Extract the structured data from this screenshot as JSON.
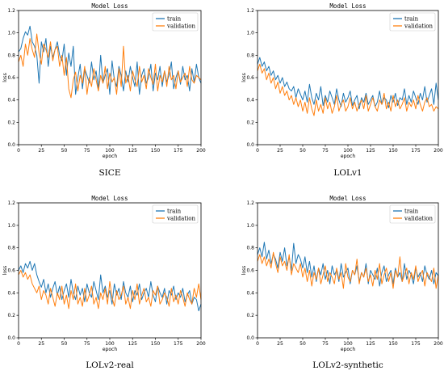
{
  "colors": {
    "train": "#1f77b4",
    "validation": "#ff7f0e"
  },
  "chart_data": [
    {
      "type": "line",
      "title": "Model Loss",
      "caption": "SICE",
      "xlabel": "epoch",
      "ylabel": "loss",
      "xlim": [
        0,
        200
      ],
      "ylim": [
        0,
        1.2
      ],
      "xticks": [
        "0",
        "25",
        "50",
        "75",
        "100",
        "125",
        "150",
        "175",
        "200"
      ],
      "yticks": [
        "0.0",
        "0.2",
        "0.4",
        "0.6",
        "0.8",
        "1.0",
        "1.2"
      ],
      "legend_position": "top-right",
      "series": [
        {
          "name": "train",
          "color": "#1f77b4",
          "values": [
            0.83,
            0.86,
            0.95,
            1.01,
            0.98,
            1.06,
            0.92,
            0.88,
            0.8,
            0.55,
            0.92,
            0.83,
            0.95,
            0.7,
            0.88,
            0.78,
            0.85,
            0.92,
            0.8,
            0.75,
            0.9,
            0.62,
            0.82,
            0.7,
            0.88,
            0.45,
            0.6,
            0.72,
            0.5,
            0.68,
            0.62,
            0.55,
            0.74,
            0.58,
            0.66,
            0.5,
            0.8,
            0.55,
            0.62,
            0.68,
            0.45,
            0.75,
            0.58,
            0.52,
            0.7,
            0.62,
            0.48,
            0.66,
            0.56,
            0.7,
            0.6,
            0.52,
            0.74,
            0.45,
            0.62,
            0.68,
            0.55,
            0.6,
            0.72,
            0.48,
            0.64,
            0.58,
            0.7,
            0.52,
            0.66,
            0.56,
            0.62,
            0.74,
            0.5,
            0.6,
            0.66,
            0.54,
            0.7,
            0.58,
            0.62,
            0.48,
            0.68,
            0.56,
            0.72,
            0.6,
            0.55
          ]
        },
        {
          "name": "validation",
          "color": "#ff7f0e",
          "values": [
            0.74,
            0.8,
            0.7,
            0.9,
            0.8,
            0.95,
            0.85,
            0.78,
            0.99,
            0.82,
            0.72,
            0.9,
            0.85,
            0.78,
            0.92,
            0.75,
            0.85,
            0.88,
            0.7,
            0.8,
            0.62,
            0.78,
            0.5,
            0.42,
            0.58,
            0.65,
            0.48,
            0.62,
            0.55,
            0.7,
            0.45,
            0.6,
            0.52,
            0.68,
            0.58,
            0.48,
            0.62,
            0.55,
            0.7,
            0.5,
            0.64,
            0.56,
            0.6,
            0.45,
            0.68,
            0.52,
            0.88,
            0.55,
            0.62,
            0.48,
            0.66,
            0.58,
            0.52,
            0.7,
            0.56,
            0.62,
            0.5,
            0.68,
            0.6,
            0.54,
            0.72,
            0.48,
            0.62,
            0.56,
            0.66,
            0.52,
            0.7,
            0.58,
            0.62,
            0.5,
            0.66,
            0.56,
            0.6,
            0.64,
            0.52,
            0.7,
            0.58,
            0.55,
            0.62,
            0.6,
            0.58
          ]
        }
      ]
    },
    {
      "type": "line",
      "title": "Model Loss",
      "caption": "LOLv1",
      "xlabel": "epoch",
      "ylabel": "loss",
      "xlim": [
        0,
        200
      ],
      "ylim": [
        0,
        1.2
      ],
      "xticks": [
        "0",
        "25",
        "50",
        "75",
        "100",
        "125",
        "150",
        "175",
        "200"
      ],
      "yticks": [
        "0.0",
        "0.2",
        "0.4",
        "0.6",
        "0.8",
        "1.0",
        "1.2"
      ],
      "legend_position": "top-right",
      "series": [
        {
          "name": "train",
          "color": "#1f77b4",
          "values": [
            0.72,
            0.78,
            0.7,
            0.74,
            0.66,
            0.7,
            0.62,
            0.66,
            0.58,
            0.62,
            0.55,
            0.6,
            0.52,
            0.56,
            0.5,
            0.48,
            0.52,
            0.42,
            0.5,
            0.45,
            0.4,
            0.48,
            0.38,
            0.54,
            0.42,
            0.36,
            0.46,
            0.4,
            0.52,
            0.35,
            0.44,
            0.38,
            0.48,
            0.42,
            0.36,
            0.5,
            0.4,
            0.34,
            0.46,
            0.38,
            0.42,
            0.48,
            0.35,
            0.4,
            0.44,
            0.32,
            0.42,
            0.38,
            0.46,
            0.36,
            0.4,
            0.44,
            0.34,
            0.38,
            0.48,
            0.36,
            0.42,
            0.4,
            0.33,
            0.44,
            0.38,
            0.46,
            0.35,
            0.42,
            0.4,
            0.5,
            0.36,
            0.44,
            0.38,
            0.48,
            0.42,
            0.36,
            0.46,
            0.4,
            0.52,
            0.38,
            0.44,
            0.5,
            0.36,
            0.55,
            0.4
          ]
        },
        {
          "name": "validation",
          "color": "#ff7f0e",
          "values": [
            0.66,
            0.72,
            0.64,
            0.68,
            0.58,
            0.64,
            0.55,
            0.6,
            0.5,
            0.56,
            0.46,
            0.52,
            0.44,
            0.48,
            0.4,
            0.44,
            0.36,
            0.42,
            0.34,
            0.4,
            0.3,
            0.38,
            0.28,
            0.42,
            0.32,
            0.26,
            0.4,
            0.3,
            0.36,
            0.28,
            0.42,
            0.32,
            0.38,
            0.28,
            0.34,
            0.44,
            0.3,
            0.36,
            0.4,
            0.3,
            0.34,
            0.42,
            0.32,
            0.38,
            0.3,
            0.36,
            0.4,
            0.32,
            0.44,
            0.3,
            0.36,
            0.42,
            0.34,
            0.3,
            0.4,
            0.36,
            0.46,
            0.32,
            0.38,
            0.3,
            0.44,
            0.34,
            0.4,
            0.32,
            0.36,
            0.42,
            0.3,
            0.38,
            0.34,
            0.4,
            0.32,
            0.44,
            0.36,
            0.3,
            0.38,
            0.42,
            0.34,
            0.36,
            0.3,
            0.34,
            0.32
          ]
        }
      ]
    },
    {
      "type": "line",
      "title": "Model Loss",
      "caption": "LOLv2-real",
      "xlabel": "epoch",
      "ylabel": "loss",
      "xlim": [
        0,
        200
      ],
      "ylim": [
        0,
        1.2
      ],
      "xticks": [
        "0",
        "25",
        "50",
        "75",
        "100",
        "125",
        "150",
        "175",
        "200"
      ],
      "yticks": [
        "0.0",
        "0.2",
        "0.4",
        "0.6",
        "0.8",
        "1.0",
        "1.2"
      ],
      "legend_position": "top-right",
      "series": [
        {
          "name": "train",
          "color": "#1f77b4",
          "values": [
            0.6,
            0.64,
            0.58,
            0.66,
            0.62,
            0.68,
            0.6,
            0.66,
            0.56,
            0.5,
            0.45,
            0.52,
            0.4,
            0.48,
            0.36,
            0.44,
            0.5,
            0.38,
            0.46,
            0.34,
            0.42,
            0.48,
            0.36,
            0.52,
            0.4,
            0.34,
            0.46,
            0.38,
            0.44,
            0.32,
            0.48,
            0.4,
            0.36,
            0.5,
            0.42,
            0.34,
            0.56,
            0.4,
            0.46,
            0.36,
            0.42,
            0.3,
            0.48,
            0.38,
            0.44,
            0.34,
            0.5,
            0.4,
            0.36,
            0.46,
            0.32,
            0.42,
            0.38,
            0.48,
            0.34,
            0.4,
            0.44,
            0.36,
            0.5,
            0.38,
            0.32,
            0.46,
            0.4,
            0.36,
            0.44,
            0.3,
            0.42,
            0.38,
            0.46,
            0.34,
            0.4,
            0.36,
            0.44,
            0.32,
            0.38,
            0.42,
            0.3,
            0.36,
            0.34,
            0.24,
            0.3
          ]
        },
        {
          "name": "validation",
          "color": "#ff7f0e",
          "values": [
            0.56,
            0.6,
            0.54,
            0.58,
            0.52,
            0.56,
            0.48,
            0.44,
            0.4,
            0.46,
            0.34,
            0.42,
            0.38,
            0.3,
            0.44,
            0.36,
            0.28,
            0.4,
            0.34,
            0.46,
            0.3,
            0.38,
            0.26,
            0.42,
            0.34,
            0.48,
            0.3,
            0.36,
            0.28,
            0.44,
            0.32,
            0.38,
            0.46,
            0.3,
            0.36,
            0.26,
            0.4,
            0.34,
            0.44,
            0.3,
            0.5,
            0.36,
            0.28,
            0.42,
            0.34,
            0.38,
            0.46,
            0.3,
            0.36,
            0.26,
            0.42,
            0.34,
            0.48,
            0.3,
            0.38,
            0.44,
            0.32,
            0.36,
            0.28,
            0.42,
            0.38,
            0.46,
            0.3,
            0.34,
            0.4,
            0.36,
            0.28,
            0.44,
            0.32,
            0.38,
            0.3,
            0.42,
            0.36,
            0.28,
            0.4,
            0.34,
            0.3,
            0.44,
            0.36,
            0.48,
            0.34
          ]
        }
      ]
    },
    {
      "type": "line",
      "title": "Model Loss",
      "caption": "LOLv2-synthetic",
      "xlabel": "epoch",
      "ylabel": "loss",
      "xlim": [
        0,
        200
      ],
      "ylim": [
        0,
        1.2
      ],
      "xticks": [
        "0",
        "25",
        "50",
        "75",
        "100",
        "125",
        "150",
        "175",
        "200"
      ],
      "yticks": [
        "0.0",
        "0.2",
        "0.4",
        "0.6",
        "0.8",
        "1.0",
        "1.2"
      ],
      "legend_position": "top-right",
      "series": [
        {
          "name": "train",
          "color": "#1f77b4",
          "values": [
            0.74,
            0.8,
            0.72,
            0.85,
            0.7,
            0.78,
            0.66,
            0.74,
            0.7,
            0.62,
            0.76,
            0.68,
            0.8,
            0.64,
            0.72,
            0.6,
            0.84,
            0.66,
            0.74,
            0.7,
            0.62,
            0.72,
            0.58,
            0.68,
            0.54,
            0.64,
            0.5,
            0.62,
            0.56,
            0.66,
            0.52,
            0.6,
            0.48,
            0.64,
            0.56,
            0.6,
            0.5,
            0.66,
            0.54,
            0.58,
            0.62,
            0.48,
            0.6,
            0.56,
            0.64,
            0.5,
            0.58,
            0.54,
            0.66,
            0.48,
            0.6,
            0.56,
            0.52,
            0.62,
            0.46,
            0.58,
            0.64,
            0.5,
            0.56,
            0.6,
            0.48,
            0.62,
            0.54,
            0.58,
            0.5,
            0.66,
            0.52,
            0.6,
            0.56,
            0.48,
            0.62,
            0.54,
            0.58,
            0.5,
            0.64,
            0.56,
            0.52,
            0.6,
            0.48,
            0.58,
            0.55
          ]
        },
        {
          "name": "validation",
          "color": "#ff7f0e",
          "values": [
            0.68,
            0.74,
            0.66,
            0.72,
            0.64,
            0.7,
            0.62,
            0.76,
            0.66,
            0.58,
            0.72,
            0.64,
            0.68,
            0.6,
            0.74,
            0.56,
            0.66,
            0.62,
            0.58,
            0.66,
            0.54,
            0.62,
            0.5,
            0.6,
            0.46,
            0.58,
            0.52,
            0.62,
            0.48,
            0.56,
            0.64,
            0.5,
            0.58,
            0.54,
            0.48,
            0.62,
            0.52,
            0.58,
            0.44,
            0.66,
            0.54,
            0.5,
            0.6,
            0.56,
            0.7,
            0.48,
            0.58,
            0.54,
            0.62,
            0.5,
            0.56,
            0.46,
            0.6,
            0.52,
            0.66,
            0.48,
            0.56,
            0.62,
            0.5,
            0.58,
            0.44,
            0.6,
            0.54,
            0.72,
            0.5,
            0.56,
            0.62,
            0.48,
            0.58,
            0.52,
            0.64,
            0.5,
            0.56,
            0.6,
            0.46,
            0.58,
            0.54,
            0.5,
            0.62,
            0.44,
            0.56
          ]
        }
      ]
    }
  ]
}
